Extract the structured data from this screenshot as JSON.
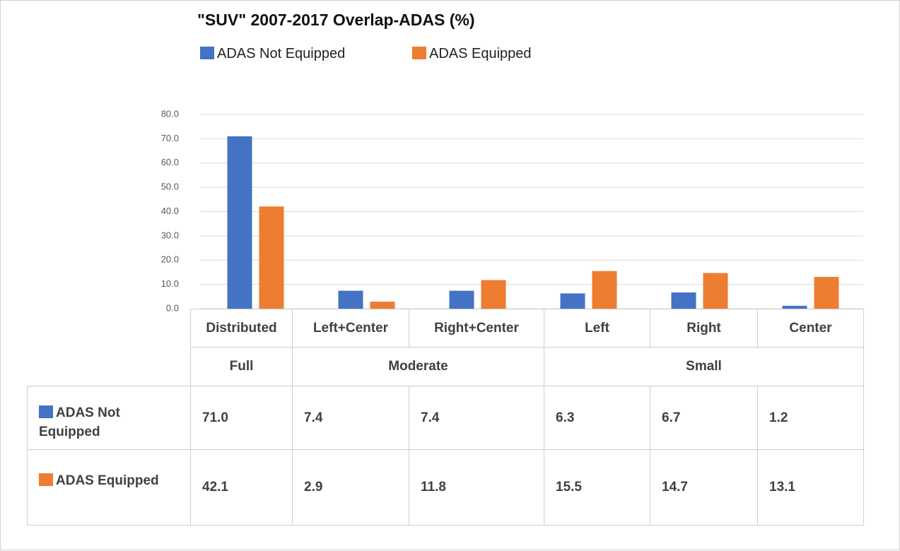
{
  "chart_data": {
    "type": "bar",
    "title": "\"SUV\" 2007-2017 Overlap-ADAS (%)",
    "categories": [
      "Distributed",
      "Left+Center",
      "Right+Center",
      "Left",
      "Right",
      "Center"
    ],
    "groups": [
      "Full",
      "Moderate",
      "Small"
    ],
    "series": [
      {
        "name": "ADAS Not Equipped",
        "color": "#4472c4",
        "values": [
          71.0,
          7.4,
          7.4,
          6.3,
          6.7,
          1.2
        ],
        "value_labels": [
          "71.0",
          "7.4",
          "7.4",
          "6.3",
          "6.7",
          "1.2"
        ]
      },
      {
        "name": "ADAS Equipped",
        "color": "#ed7d31",
        "values": [
          42.1,
          2.9,
          11.8,
          15.5,
          14.7,
          13.1
        ],
        "value_labels": [
          "42.1",
          "2.9",
          "11.8",
          "15.5",
          "14.7",
          "13.1"
        ]
      }
    ],
    "ylim": [
      0,
      80
    ],
    "yticks": [
      {
        "value": 0,
        "label": "0.0"
      },
      {
        "value": 10,
        "label": "10.0"
      },
      {
        "value": 20,
        "label": "20.0"
      },
      {
        "value": 30,
        "label": "30.0"
      },
      {
        "value": 40,
        "label": "40.0"
      },
      {
        "value": 50,
        "label": "50.0"
      },
      {
        "value": 60,
        "label": "60.0"
      },
      {
        "value": 70,
        "label": "70.0"
      },
      {
        "value": 80,
        "label": "80.0"
      }
    ],
    "grid": true
  }
}
